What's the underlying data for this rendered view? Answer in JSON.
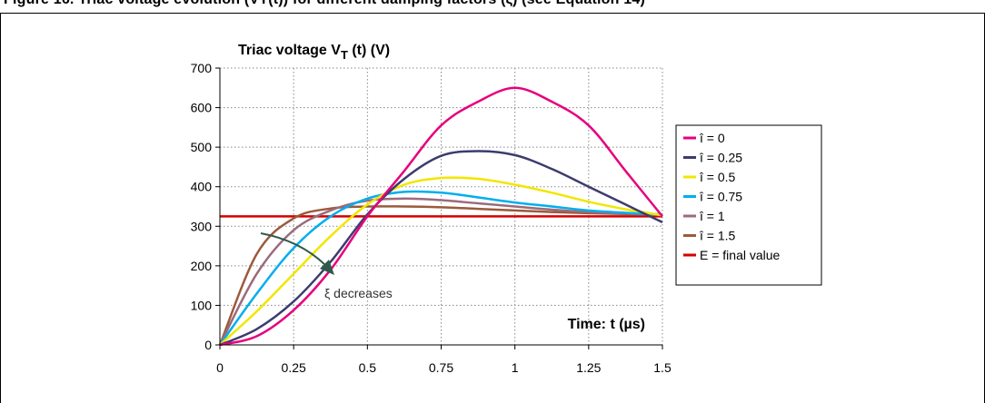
{
  "header": {
    "text": "Figure 16. Triac voltage evolution (VT(t)) for different damping factors (ξ) (see Equation 14)"
  },
  "chart_data": {
    "type": "line",
    "title_main": "Triac voltage V",
    "title_sub": "T",
    "title_rest": " (t) (V)",
    "xlabel": "Time: t (µs)",
    "xlim": [
      0,
      1.5
    ],
    "ylim": [
      0,
      700
    ],
    "xticks": [
      "0",
      "0.25",
      "0.5",
      "0.75",
      "1",
      "1.25",
      "1.5"
    ],
    "yticks": [
      "0",
      "100",
      "200",
      "300",
      "400",
      "500",
      "600",
      "700"
    ],
    "grid": true,
    "legend_position": "right",
    "series": [
      {
        "name": "î = 0",
        "color": "#e6007e",
        "x": [
          0,
          0.125,
          0.25,
          0.375,
          0.5,
          0.625,
          0.75,
          0.875,
          1.0,
          1.125,
          1.25,
          1.375,
          1.5
        ],
        "y": [
          0,
          22,
          88,
          190,
          325,
          440,
          555,
          615,
          650,
          615,
          555,
          440,
          325
        ]
      },
      {
        "name": "î = 0.25",
        "color": "#3c3c6e",
        "x": [
          0,
          0.125,
          0.25,
          0.375,
          0.5,
          0.625,
          0.75,
          0.875,
          1.0,
          1.125,
          1.25,
          1.375,
          1.5
        ],
        "y": [
          0,
          40,
          110,
          210,
          330,
          420,
          478,
          490,
          480,
          445,
          400,
          355,
          310
        ]
      },
      {
        "name": "î = 0.5",
        "color": "#f2e600",
        "x": [
          0,
          0.125,
          0.25,
          0.375,
          0.5,
          0.625,
          0.75,
          0.875,
          1.0,
          1.125,
          1.25,
          1.375,
          1.5
        ],
        "y": [
          0,
          85,
          180,
          275,
          355,
          405,
          422,
          420,
          405,
          385,
          362,
          343,
          328
        ]
      },
      {
        "name": "î = 0.75",
        "color": "#00aeef",
        "x": [
          0,
          0.125,
          0.25,
          0.375,
          0.5,
          0.625,
          0.75,
          0.875,
          1.0,
          1.125,
          1.25,
          1.375,
          1.5
        ],
        "y": [
          0,
          130,
          245,
          325,
          370,
          387,
          385,
          373,
          360,
          350,
          340,
          334,
          330
        ]
      },
      {
        "name": "î = 1",
        "color": "#9b6b7b",
        "x": [
          0,
          0.125,
          0.25,
          0.375,
          0.5,
          0.625,
          0.75,
          0.875,
          1.0,
          1.125,
          1.25,
          1.375,
          1.5
        ],
        "y": [
          0,
          180,
          290,
          340,
          365,
          370,
          366,
          358,
          350,
          342,
          336,
          332,
          328
        ]
      },
      {
        "name": "î = 1.5",
        "color": "#9c5a3c",
        "x": [
          0,
          0.125,
          0.25,
          0.375,
          0.5,
          0.625,
          0.75,
          0.875,
          1.0,
          1.125,
          1.25,
          1.375,
          1.5
        ],
        "y": [
          0,
          230,
          320,
          345,
          350,
          350,
          348,
          344,
          340,
          336,
          333,
          331,
          329
        ]
      },
      {
        "name": "E = final value",
        "color": "#d40000",
        "x": [
          0,
          1.5
        ],
        "y": [
          325,
          325
        ]
      }
    ],
    "annotation": {
      "text": "ξ decreases",
      "color": "#2f5a4a"
    }
  }
}
